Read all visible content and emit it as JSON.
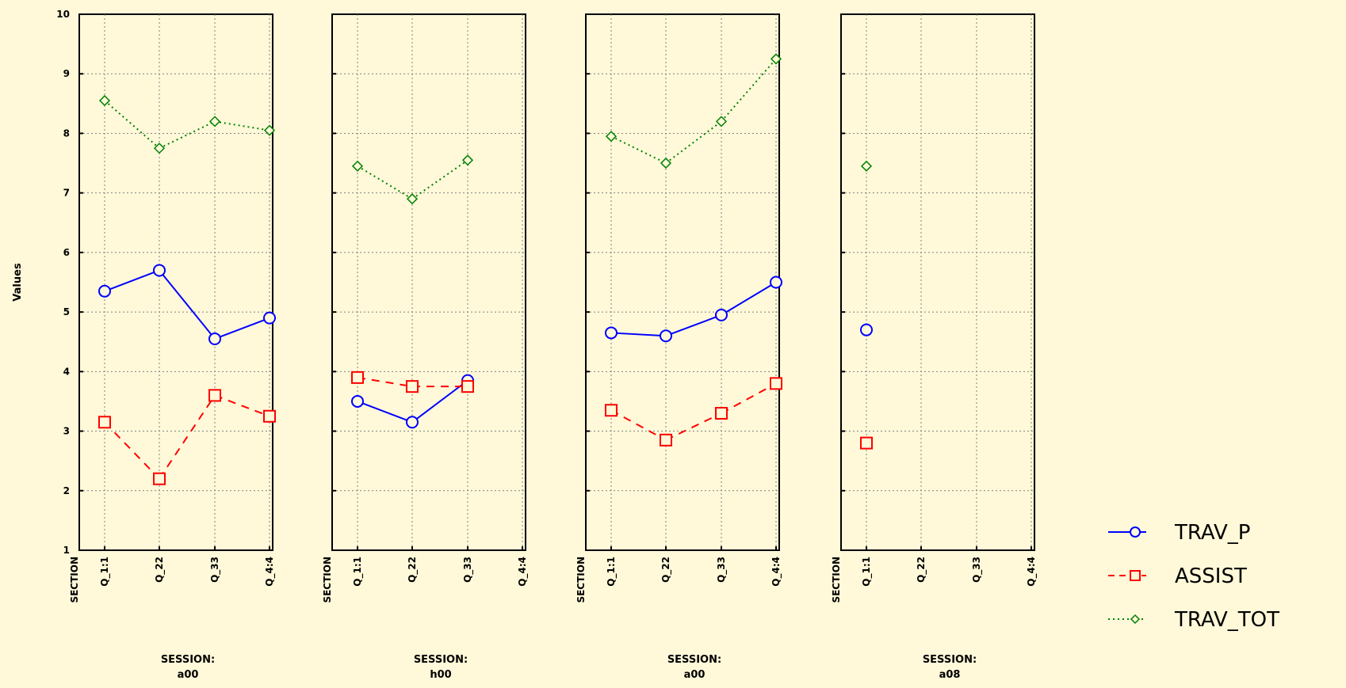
{
  "chart_data": {
    "type": "line",
    "ylabel": "Values",
    "ylim": [
      1,
      10
    ],
    "yticks": [
      1,
      2,
      3,
      4,
      5,
      6,
      7,
      8,
      9,
      10
    ],
    "grid": true,
    "x_axis_label": "SECTION",
    "categories": [
      "Q_1:1",
      "Q_22",
      "Q_33",
      "Q_4:4"
    ],
    "panel_title_label": "SESSION:",
    "legend_position": "right",
    "series": [
      {
        "name": "TRAV_P",
        "color": "#0000ff",
        "marker": "circle",
        "line": "solid"
      },
      {
        "name": "ASSIST",
        "color": "#ff0000",
        "marker": "square",
        "line": "dashed"
      },
      {
        "name": "TRAV_TOT",
        "color": "#008000",
        "marker": "diamond",
        "line": "dotted"
      }
    ],
    "panels": [
      {
        "session": "a00",
        "values": {
          "TRAV_P": [
            5.35,
            5.7,
            4.55,
            4.9
          ],
          "ASSIST": [
            3.15,
            2.2,
            3.6,
            3.25
          ],
          "TRAV_TOT": [
            8.55,
            7.75,
            8.2,
            8.05
          ]
        }
      },
      {
        "session": "h00",
        "values": {
          "TRAV_P": [
            3.5,
            3.15,
            3.85,
            null
          ],
          "ASSIST": [
            3.9,
            3.75,
            3.75,
            null
          ],
          "TRAV_TOT": [
            7.45,
            6.9,
            7.55,
            null
          ]
        }
      },
      {
        "session": "a00",
        "values": {
          "TRAV_P": [
            4.65,
            4.6,
            4.95,
            5.5
          ],
          "ASSIST": [
            3.35,
            2.85,
            3.3,
            3.8
          ],
          "TRAV_TOT": [
            7.95,
            7.5,
            8.2,
            9.25
          ]
        }
      },
      {
        "session": "a08",
        "values": {
          "TRAV_P": [
            4.7,
            null,
            null,
            null
          ],
          "ASSIST": [
            2.8,
            null,
            null,
            null
          ],
          "TRAV_TOT": [
            7.45,
            null,
            null,
            null
          ]
        }
      }
    ]
  }
}
